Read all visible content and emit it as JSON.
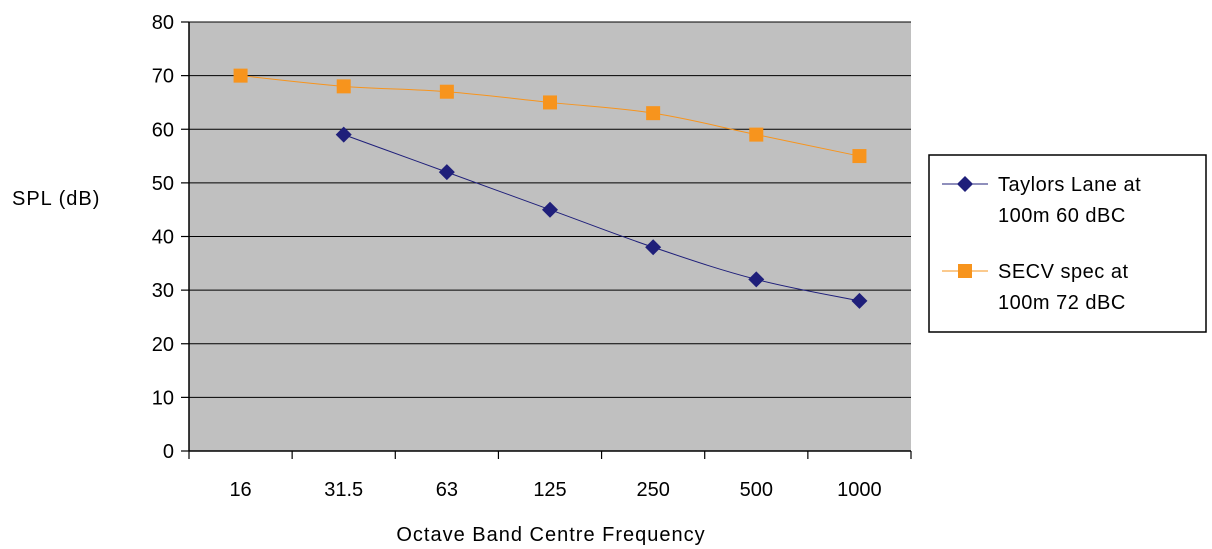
{
  "chart_data": {
    "type": "line",
    "xlabel": "Octave Band Centre Frequency",
    "ylabel": "SPL (dB)",
    "categories": [
      "16",
      "31.5",
      "63",
      "125",
      "250",
      "500",
      "1000"
    ],
    "ylim": [
      0,
      80
    ],
    "yticks": [
      0,
      10,
      20,
      30,
      40,
      50,
      60,
      70,
      80
    ],
    "grid": true,
    "legend_position": "right",
    "series": [
      {
        "name_lines": [
          "Taylors Lane at",
          "100m 60 dBC"
        ],
        "values": [
          null,
          59,
          52,
          45,
          38,
          32,
          28
        ],
        "color": "#1f1f7a",
        "marker": "diamond"
      },
      {
        "name_lines": [
          "SECV spec at",
          "100m 72 dBC"
        ],
        "values": [
          70,
          68,
          67,
          65,
          63,
          59,
          55
        ],
        "color": "#f7941d",
        "marker": "square"
      }
    ],
    "plot_background": "#c0c0c0"
  }
}
